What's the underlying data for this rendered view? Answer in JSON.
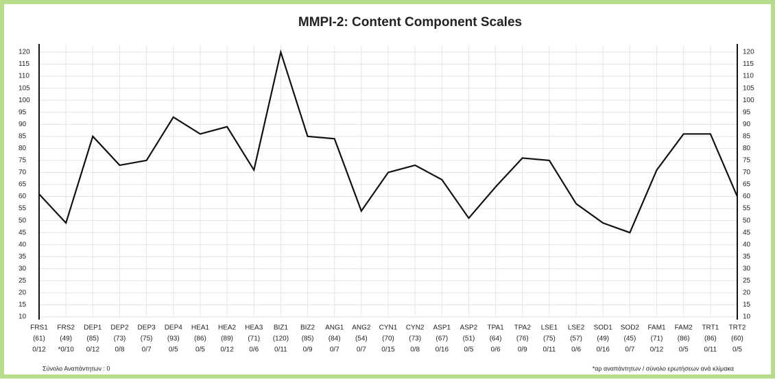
{
  "chart_data": {
    "type": "line",
    "title": "MMPI-2: Content Component Scales",
    "categories": [
      "FRS1",
      "FRS2",
      "DEP1",
      "DEP2",
      "DEP3",
      "DEP4",
      "HEA1",
      "HEA2",
      "HEA3",
      "BIZ1",
      "BIZ2",
      "ANG1",
      "ANG2",
      "CYN1",
      "CYN2",
      "ASP1",
      "ASP2",
      "TPA1",
      "TPA2",
      "LSE1",
      "LSE2",
      "SOD1",
      "SOD2",
      "FAM1",
      "FAM2",
      "TRT1",
      "TRT2"
    ],
    "values": [
      61,
      49,
      85,
      73,
      75,
      93,
      86,
      89,
      71,
      120,
      85,
      84,
      54,
      70,
      73,
      67,
      51,
      64,
      76,
      75,
      57,
      49,
      45,
      71,
      86,
      86,
      60
    ],
    "value_labels": [
      "(61)",
      "(49)",
      "(85)",
      "(73)",
      "(75)",
      "(93)",
      "(86)",
      "(89)",
      "(71)",
      "(120)",
      "(85)",
      "(84)",
      "(54)",
      "(70)",
      "(73)",
      "(67)",
      "(51)",
      "(64)",
      "(76)",
      "(75)",
      "(57)",
      "(49)",
      "(45)",
      "(71)",
      "(86)",
      "(86)",
      "(60)"
    ],
    "sublabels": [
      "0/12",
      "*0/10",
      "0/12",
      "0/8",
      "0/7",
      "0/5",
      "0/5",
      "0/12",
      "0/6",
      "0/11",
      "0/9",
      "0/7",
      "0/7",
      "0/15",
      "0/8",
      "0/16",
      "0/5",
      "0/6",
      "0/9",
      "0/11",
      "0/6",
      "0/16",
      "0/7",
      "0/12",
      "0/5",
      "0/11",
      "0/5"
    ],
    "color": "#111111",
    "ylim": [
      10,
      120
    ],
    "yticks": [
      10,
      15,
      20,
      25,
      30,
      35,
      40,
      45,
      50,
      55,
      60,
      65,
      70,
      75,
      80,
      85,
      90,
      95,
      100,
      105,
      110,
      115,
      120
    ],
    "grid": true,
    "footer_left": "Σύνολο Αναπάντητων : 0",
    "footer_right": "*αρ αναπάντητων / σύνολο ερωτήσεων ανά κλίμακα"
  }
}
